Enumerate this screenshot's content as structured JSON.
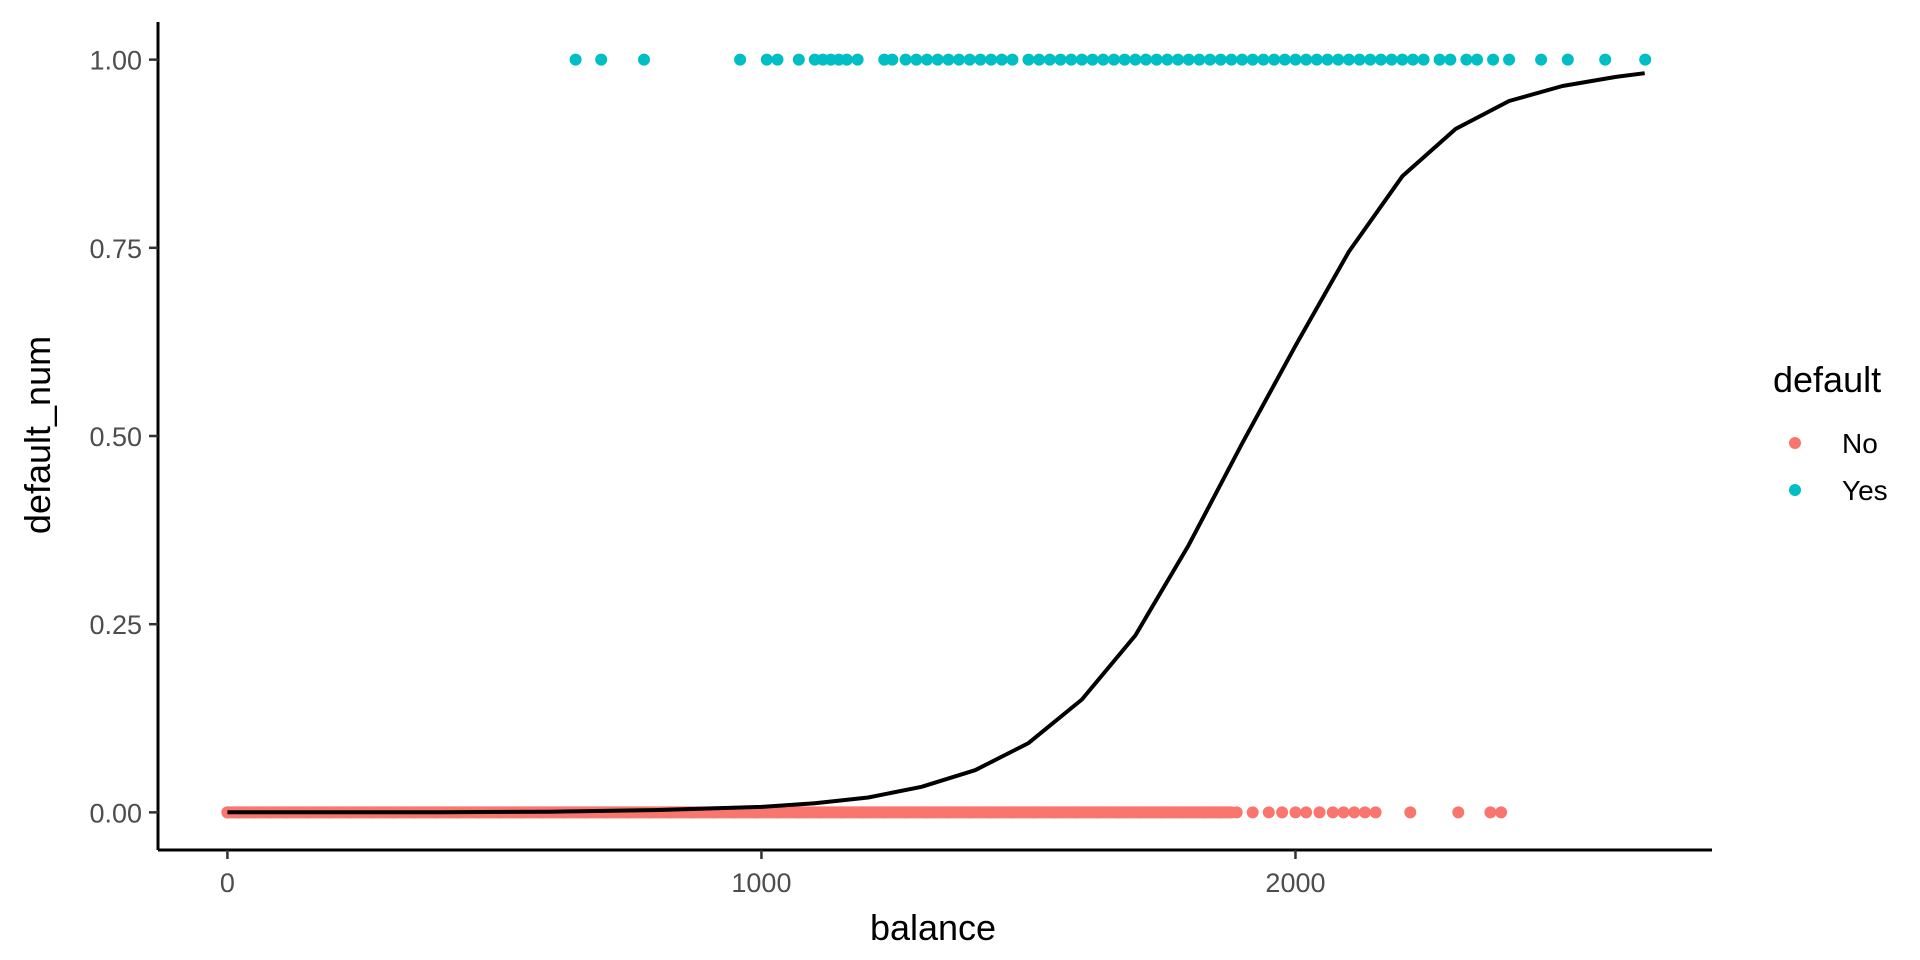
{
  "chart_data": {
    "type": "scatter",
    "title": "",
    "xlabel": "balance",
    "ylabel": "default_num",
    "xlim": [
      -130,
      2780
    ],
    "ylim": [
      -0.05,
      1.05
    ],
    "x_ticks": [
      0,
      1000,
      2000
    ],
    "x_tick_labels": [
      "0",
      "1000",
      "2000"
    ],
    "y_ticks": [
      0,
      0.25,
      0.5,
      0.75,
      1.0
    ],
    "y_tick_labels": [
      "0.00",
      "0.25",
      "0.50",
      "0.75",
      "1.00"
    ],
    "grid": false,
    "legend": {
      "title": "default",
      "position": "right",
      "entries": [
        {
          "label": "No",
          "color": "#F8766D"
        },
        {
          "label": "Yes",
          "color": "#00BFC4"
        }
      ]
    },
    "series": [
      {
        "name": "No",
        "color": "#F8766D",
        "y": 0,
        "x": [
          0,
          20,
          50,
          80,
          110,
          150,
          190,
          230,
          270,
          310,
          350,
          390,
          430,
          470,
          510,
          550,
          590,
          630,
          670,
          710,
          750,
          790,
          830,
          870,
          910,
          950,
          990,
          1030,
          1070,
          1110,
          1150,
          1190,
          1230,
          1270,
          1310,
          1350,
          1390,
          1430,
          1470,
          1510,
          1550,
          1590,
          1630,
          1670,
          1710,
          1750,
          1790,
          1830,
          1860,
          1890,
          1920,
          1950,
          1975,
          2000,
          2020,
          2045,
          2070,
          2090,
          2110,
          2130,
          2150,
          2215,
          2305,
          2365,
          2385
        ]
      },
      {
        "name": "Yes",
        "color": "#00BFC4",
        "y": 1,
        "x": [
          652,
          700,
          780,
          960,
          1010,
          1030,
          1070,
          1100,
          1115,
          1130,
          1145,
          1160,
          1180,
          1230,
          1245,
          1270,
          1290,
          1310,
          1330,
          1350,
          1370,
          1390,
          1410,
          1430,
          1450,
          1470,
          1500,
          1520,
          1540,
          1560,
          1580,
          1600,
          1620,
          1640,
          1660,
          1680,
          1700,
          1720,
          1740,
          1760,
          1780,
          1800,
          1820,
          1840,
          1860,
          1880,
          1900,
          1920,
          1940,
          1960,
          1980,
          2000,
          2020,
          2040,
          2060,
          2080,
          2100,
          2120,
          2140,
          2160,
          2180,
          2200,
          2220,
          2240,
          2270,
          2290,
          2320,
          2340,
          2370,
          2400,
          2460,
          2510,
          2580,
          2655
        ]
      },
      {
        "type": "line",
        "color": "#000000",
        "x": [
          0,
          200,
          400,
          600,
          800,
          1000,
          1100,
          1200,
          1300,
          1400,
          1500,
          1600,
          1700,
          1800,
          1900,
          2000,
          2100,
          2200,
          2300,
          2400,
          2500,
          2600,
          2654
        ],
        "y": [
          2.2e-05,
          7.5e-05,
          0.00026,
          0.00088,
          0.003,
          0.0073,
          0.012,
          0.0197,
          0.034,
          0.056,
          0.092,
          0.15,
          0.235,
          0.355,
          0.49,
          0.62,
          0.745,
          0.845,
          0.908,
          0.945,
          0.965,
          0.977,
          0.982
        ]
      }
    ]
  }
}
